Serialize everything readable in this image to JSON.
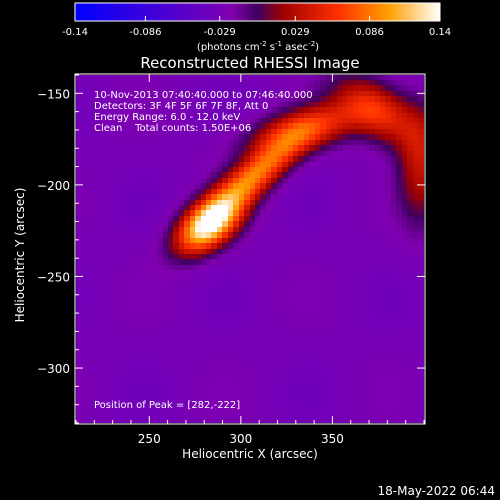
{
  "chart_data": {
    "type": "heatmap",
    "title": "Reconstructed RHESSI Image",
    "xlabel": "Heliocentric X (arcsec)",
    "ylabel": "Heliocentric Y (arcsec)",
    "xlim": [
      210,
      400
    ],
    "ylim": [
      -330,
      -140
    ],
    "x_ticks": [
      250,
      300,
      350
    ],
    "y_ticks": [
      -150,
      -200,
      -250,
      -300
    ],
    "colorbar": {
      "ticks": [
        "-0.14",
        "-0.086",
        "-0.029",
        "0.029",
        "0.086",
        "0.14"
      ],
      "range": [
        -0.14,
        0.14
      ],
      "unit_label_parts": [
        "(photons cm",
        "-2",
        " s",
        "-1",
        " asec",
        "-2",
        ")"
      ]
    },
    "info_lines": [
      "10-Nov-2013 07:40:40.000 to 07:46:40.000",
      "Detectors: 3F 4F 5F 6F 7F 8F, Att 0",
      "Energy Range: 6.0 - 12.0 keV",
      "Clean    Total counts: 1.50E+06"
    ],
    "peak_label": "Position of Peak = [282,-222]",
    "peak": [
      282,
      -222
    ],
    "sources": [
      {
        "x": 283,
        "y": -222,
        "sx": 14,
        "sy": 8,
        "angle": 38,
        "amp": 0.14
      },
      {
        "x": 308,
        "y": -195,
        "sx": 22,
        "sy": 7,
        "angle": 40,
        "amp": 0.085
      },
      {
        "x": 335,
        "y": -170,
        "sx": 22,
        "sy": 8,
        "angle": 15,
        "amp": 0.055
      },
      {
        "x": 375,
        "y": -160,
        "sx": 18,
        "sy": 10,
        "angle": -35,
        "amp": 0.055
      },
      {
        "x": 398,
        "y": -190,
        "sx": 8,
        "sy": 22,
        "angle": 0,
        "amp": 0.03
      }
    ],
    "background": -0.028,
    "date_stamp": "18-May-2022 06:44"
  }
}
